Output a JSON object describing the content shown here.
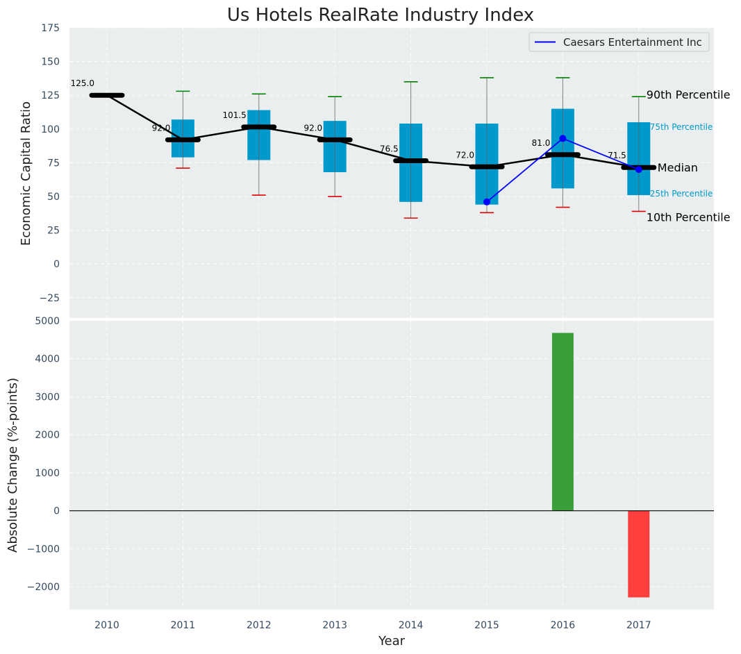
{
  "chart_data": [
    {
      "type": "box",
      "title": "Us Hotels RealRate Industry Index",
      "ylabel": "Economic Capital Ratio",
      "xlabel": "",
      "ylim": [
        -40,
        175
      ],
      "yticks": [
        -25,
        0,
        25,
        50,
        75,
        100,
        125,
        150,
        175
      ],
      "ytick_labels": [
        "−25",
        "0",
        "25",
        "50",
        "75",
        "100",
        "125",
        "150",
        "175"
      ],
      "grid": true,
      "legend_position": "top-right",
      "categories": [
        "2010",
        "2011",
        "2012",
        "2013",
        "2014",
        "2015",
        "2016",
        "2017"
      ],
      "boxes": [
        {
          "year": "2010",
          "p10": null,
          "q1": null,
          "median": 125.0,
          "q3": null,
          "p90": null
        },
        {
          "year": "2011",
          "p10": 71,
          "q1": 79,
          "median": 92.0,
          "q3": 107,
          "p90": 128
        },
        {
          "year": "2012",
          "p10": 51,
          "q1": 77,
          "median": 101.5,
          "q3": 114,
          "p90": 126
        },
        {
          "year": "2013",
          "p10": 50,
          "q1": 68,
          "median": 92.0,
          "q3": 106,
          "p90": 124
        },
        {
          "year": "2014",
          "p10": 34,
          "q1": 46,
          "median": 76.5,
          "q3": 104,
          "p90": 135
        },
        {
          "year": "2015",
          "p10": 38,
          "q1": 44,
          "median": 72.0,
          "q3": 104,
          "p90": 138
        },
        {
          "year": "2016",
          "p10": 42,
          "q1": 56,
          "median": 81.0,
          "q3": 115,
          "p90": 138
        },
        {
          "year": "2017",
          "p10": 39,
          "q1": 51,
          "median": 71.5,
          "q3": 105,
          "p90": 124
        }
      ],
      "median_labels": [
        "125.0",
        "92.0",
        "101.5",
        "92.0",
        "76.5",
        "72.0",
        "81.0",
        "71.5"
      ],
      "series": [
        {
          "name": "Caesars Entertainment Inc",
          "x": [
            "2015",
            "2016",
            "2017"
          ],
          "values": [
            46,
            93,
            70
          ],
          "color": "#0000ff"
        }
      ],
      "annotations": {
        "p90": "90th Percentile",
        "p75": "75th Percentile",
        "median": "Median",
        "p25": "25th Percentile",
        "p10": "10th Percentile"
      },
      "colors": {
        "box": "#0099cc",
        "median": "#000000",
        "p90_cap": "#008000",
        "p10_cap": "#e00000",
        "whisker": "#808080",
        "background": "#eaeeee"
      }
    },
    {
      "type": "bar",
      "title": "",
      "xlabel": "Year",
      "ylabel": "Absolute Change (%-points)",
      "ylim": [
        -2600,
        5000
      ],
      "yticks": [
        -2000,
        -1000,
        0,
        1000,
        2000,
        3000,
        4000,
        5000
      ],
      "ytick_labels": [
        "−2000",
        "−1000",
        "0",
        "1000",
        "2000",
        "3000",
        "4000",
        "5000"
      ],
      "grid": true,
      "categories": [
        "2010",
        "2011",
        "2012",
        "2013",
        "2014",
        "2015",
        "2016",
        "2017"
      ],
      "values": [
        null,
        null,
        null,
        null,
        null,
        null,
        4680,
        -2280
      ],
      "colors": {
        "positive": "#3a9e3a",
        "negative": "#ff3e3e",
        "zero_line": "#000000"
      }
    }
  ]
}
